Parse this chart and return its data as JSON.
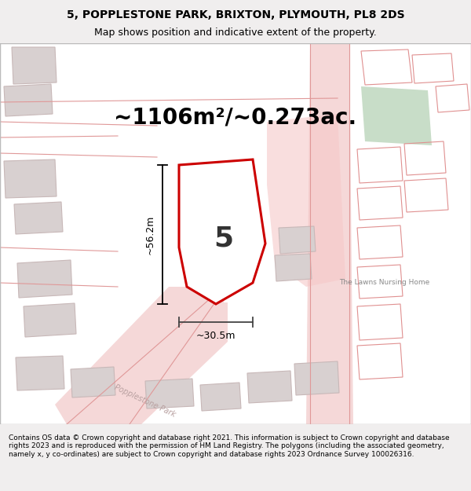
{
  "title_line1": "5, POPPLESTONE PARK, BRIXTON, PLYMOUTH, PL8 2DS",
  "title_line2": "Map shows position and indicative extent of the property.",
  "area_text": "~1106m²/~0.273ac.",
  "dim_width": "~30.5m",
  "dim_height": "~56.2m",
  "plot_number": "5",
  "footer_text": "Contains OS data © Crown copyright and database right 2021. This information is subject to Crown copyright and database rights 2023 and is reproduced with the permission of HM Land Registry. The polygons (including the associated geometry, namely x, y co-ordinates) are subject to Crown copyright and database rights 2023 Ordnance Survey 100026316.",
  "bg_color": "#f0eeee",
  "map_bg": "#f0eeee",
  "plot_fill": "#ffffff",
  "plot_edge": "#cc0000",
  "road_fill": "#f5d8d8",
  "building_fill": "#d8d0d0",
  "building_outline": "#e8b8b8",
  "green_fill": "#c8ddc8",
  "pink_fill": "#f5c8c8",
  "white": "#ffffff",
  "road_label_color": "#b8a0a0",
  "nursing_home_color": "#888888",
  "dim_line_color": "#444444",
  "title_fontsize": 10,
  "subtitle_fontsize": 9,
  "area_fontsize": 20,
  "plot_num_fontsize": 26,
  "footer_fontsize": 6.5
}
